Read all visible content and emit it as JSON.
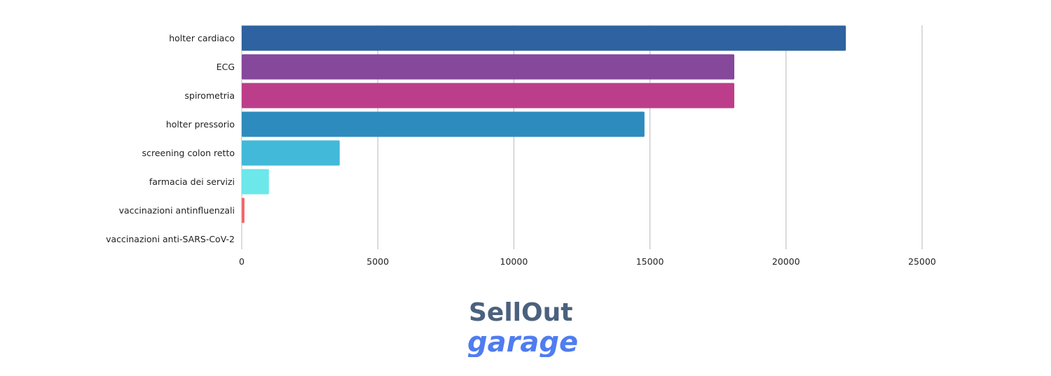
{
  "chart_data": {
    "type": "bar",
    "orientation": "horizontal",
    "categories": [
      "holter cardiaco",
      "ECG",
      "spirometria",
      "holter pressorio",
      "screening colon retto",
      "farmacia dei servizi",
      "vaccinazioni antinfluenzali",
      "vaccinazioni anti-SARS-CoV-2"
    ],
    "values": [
      22200,
      18100,
      18100,
      14800,
      3600,
      1000,
      100,
      0
    ],
    "colors": [
      "#2e62a0",
      "#86489b",
      "#bc3e8a",
      "#2e8bbd",
      "#42b9d9",
      "#6ce7ea",
      "#f0666c",
      "#f0666c"
    ],
    "xlim": [
      0,
      25000
    ],
    "xticks": [
      0,
      5000,
      10000,
      15000,
      20000,
      25000
    ],
    "xtick_labels": [
      "0",
      "5000",
      "10000",
      "15000",
      "20000",
      "25000"
    ],
    "grid": "vertical",
    "title": "",
    "xlabel": "",
    "ylabel": ""
  },
  "logo": {
    "line1": "SellOut",
    "line2": "garage"
  }
}
